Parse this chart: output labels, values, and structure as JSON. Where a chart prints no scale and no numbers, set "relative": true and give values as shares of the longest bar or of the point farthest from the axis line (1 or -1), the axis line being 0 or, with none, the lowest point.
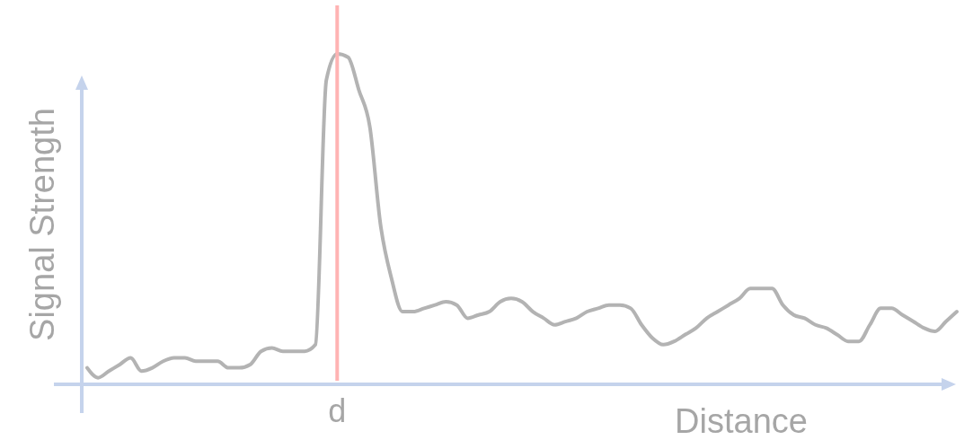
{
  "chart_data": {
    "type": "line",
    "relative": true,
    "xlabel": "Distance",
    "ylabel": "Signal Strength",
    "categories": [
      null,
      null,
      null,
      null,
      null,
      null,
      null,
      null,
      null,
      null,
      null,
      null,
      null,
      null,
      null,
      null,
      null,
      null,
      null,
      null,
      null,
      null,
      null,
      null,
      null,
      null,
      null,
      null,
      null,
      null,
      null,
      null,
      null,
      null,
      null,
      null,
      null,
      null,
      null,
      null,
      null,
      null,
      null,
      null,
      null,
      null,
      null,
      null,
      null,
      null,
      null,
      null,
      null,
      null,
      null,
      null,
      null,
      null,
      null,
      null,
      null,
      null,
      null,
      null,
      null,
      null,
      null,
      null,
      null,
      null,
      null,
      null,
      null,
      null,
      null,
      null,
      null,
      null,
      null,
      null,
      null
    ],
    "series": [
      {
        "color": "#b3b3b3",
        "values": [
          0.05,
          0.02,
          0.04,
          0.06,
          0.08,
          0.04,
          0.05,
          0.07,
          0.08,
          0.08,
          0.07,
          0.07,
          0.07,
          0.05,
          0.05,
          0.06,
          0.1,
          0.11,
          0.1,
          0.1,
          0.1,
          0.12,
          0.92,
          1.0,
          0.99,
          0.89,
          0.78,
          0.48,
          0.32,
          0.22,
          0.22,
          0.23,
          0.24,
          0.25,
          0.24,
          0.2,
          0.21,
          0.22,
          0.25,
          0.26,
          0.25,
          0.22,
          0.2,
          0.18,
          0.19,
          0.2,
          0.22,
          0.23,
          0.24,
          0.24,
          0.23,
          0.18,
          0.14,
          0.12,
          0.13,
          0.15,
          0.17,
          0.2,
          0.22,
          0.24,
          0.26,
          0.29,
          0.29,
          0.29,
          0.24,
          0.21,
          0.2,
          0.18,
          0.17,
          0.15,
          0.13,
          0.13,
          0.18,
          0.23,
          0.23,
          0.21,
          0.19,
          0.17,
          0.16,
          0.19,
          0.22
        ]
      }
    ],
    "annotations": [
      "d"
    ],
    "marker": "none",
    "line_style": "solid"
  }
}
